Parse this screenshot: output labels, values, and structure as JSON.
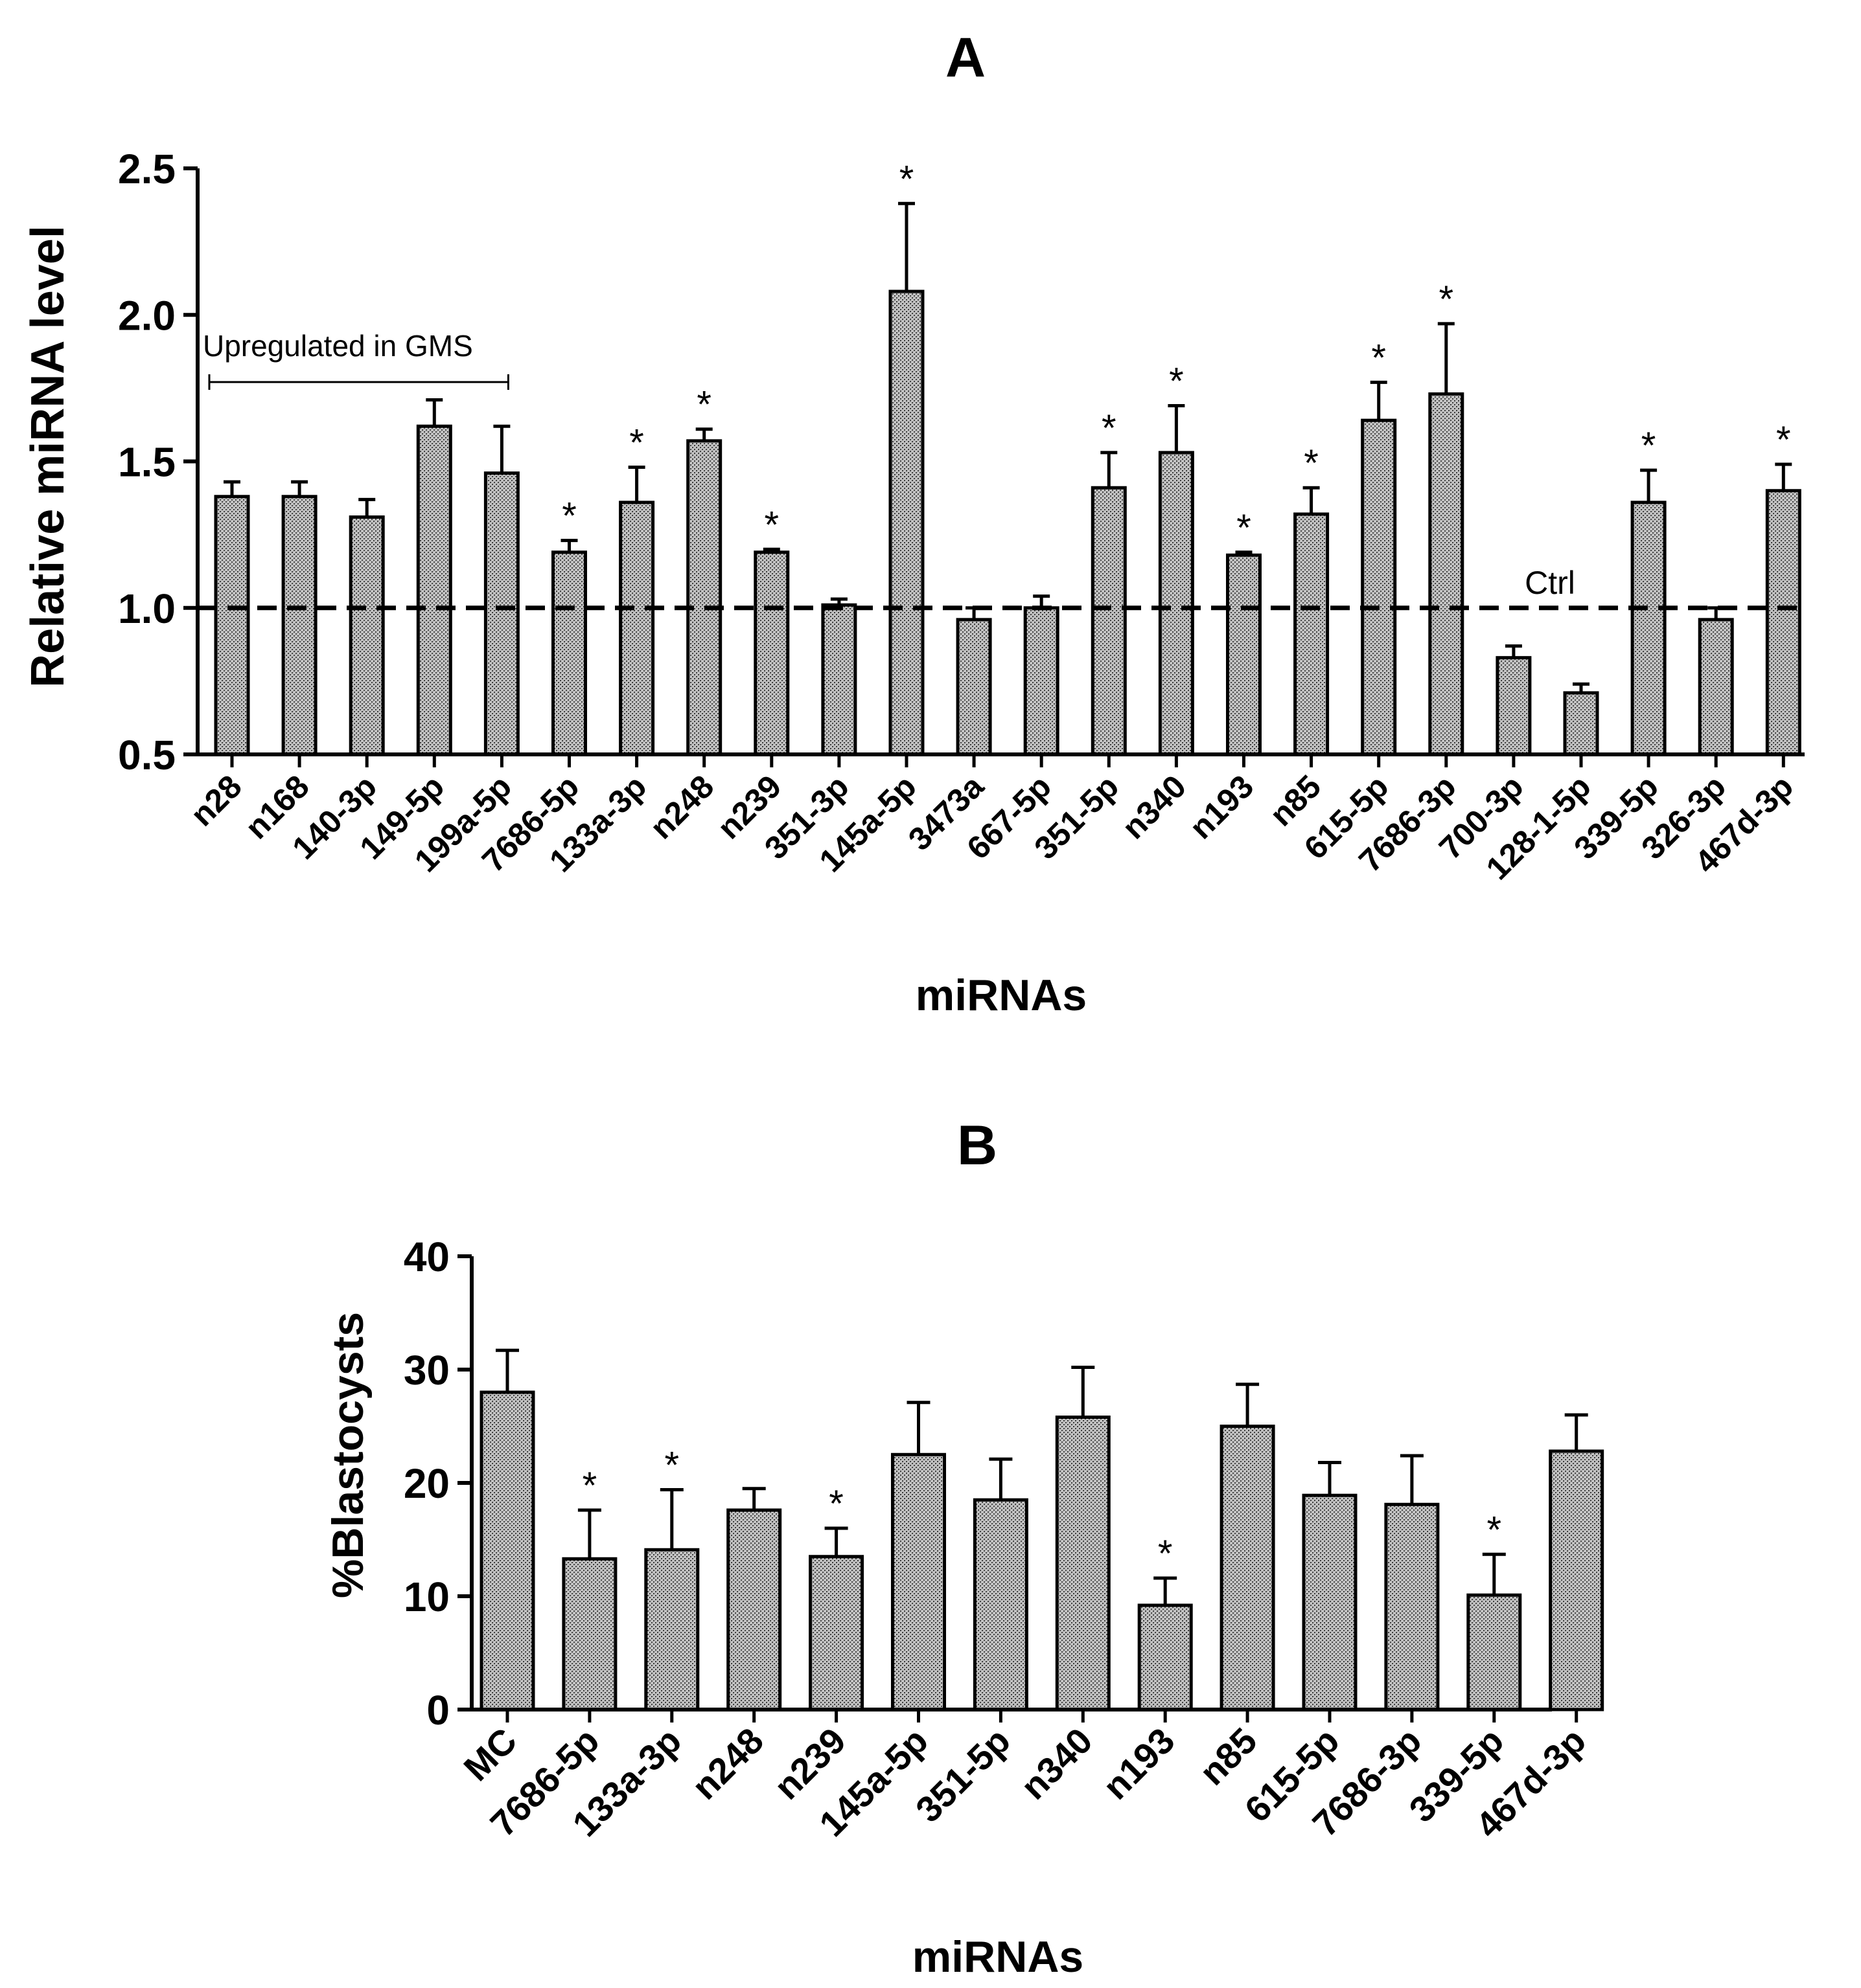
{
  "chart_data": [
    {
      "id": "A",
      "type": "bar",
      "title": "A",
      "xlabel": "miRNAs",
      "ylabel": "Relative miRNA level",
      "ylim": [
        0.5,
        2.5
      ],
      "yticks": [
        "0.5",
        "1.0",
        "1.5",
        "2.0",
        "2.5"
      ],
      "categories": [
        "n28",
        "n168",
        "140-3p",
        "149-5p",
        "199a-5p",
        "7686-5p",
        "133a-3p",
        "n248",
        "n239",
        "351-3p",
        "145a-5p",
        "3473a",
        "667-5p",
        "351-5p",
        "n340",
        "n193",
        "n85",
        "615-5p",
        "7686-3p",
        "700-3p",
        "128-1-5p",
        "339-5p",
        "326-3p",
        "467d-3p"
      ],
      "values": [
        1.38,
        1.38,
        1.31,
        1.62,
        1.46,
        1.19,
        1.36,
        1.57,
        1.19,
        1.01,
        2.08,
        0.96,
        1.0,
        1.41,
        1.53,
        1.18,
        1.32,
        1.64,
        1.73,
        0.83,
        0.71,
        1.36,
        0.96,
        1.4
      ],
      "errors": [
        0.05,
        0.05,
        0.06,
        0.09,
        0.16,
        0.04,
        0.12,
        0.04,
        0.01,
        0.02,
        0.3,
        0.04,
        0.04,
        0.12,
        0.16,
        0.01,
        0.09,
        0.13,
        0.24,
        0.04,
        0.03,
        0.11,
        0.04,
        0.09
      ],
      "significant": [
        false,
        false,
        false,
        false,
        false,
        true,
        true,
        true,
        true,
        false,
        true,
        false,
        false,
        true,
        true,
        true,
        true,
        true,
        true,
        false,
        false,
        true,
        false,
        true
      ],
      "significance_marker": "*",
      "reference_line": {
        "value": 1.0,
        "label": "Ctrl",
        "style": "dashed"
      },
      "group_annotation": {
        "label": "Upregulated in GMS",
        "from_category": 0,
        "to_category": 4
      }
    },
    {
      "id": "B",
      "type": "bar",
      "title": "B",
      "xlabel": "miRNAs",
      "ylabel": "%Blastocysts",
      "ylim": [
        0,
        40
      ],
      "yticks": [
        "0",
        "10",
        "20",
        "30",
        "40"
      ],
      "categories": [
        "MC",
        "7686-5p",
        "133a-3p",
        "n248",
        "n239",
        "145a-5p",
        "351-5p",
        "n340",
        "n193",
        "n85",
        "615-5p",
        "7686-3p",
        "339-5p",
        "467d-3p"
      ],
      "values": [
        28.0,
        13.3,
        14.1,
        17.6,
        13.5,
        22.5,
        18.5,
        25.8,
        9.2,
        25.0,
        18.9,
        18.1,
        10.1,
        22.8
      ],
      "errors": [
        3.7,
        4.3,
        5.3,
        1.9,
        2.5,
        4.6,
        3.6,
        4.4,
        2.4,
        3.7,
        2.9,
        4.3,
        3.6,
        3.2
      ],
      "significant": [
        false,
        true,
        true,
        false,
        true,
        false,
        false,
        false,
        true,
        false,
        false,
        false,
        true,
        false
      ],
      "significance_marker": "*"
    }
  ]
}
